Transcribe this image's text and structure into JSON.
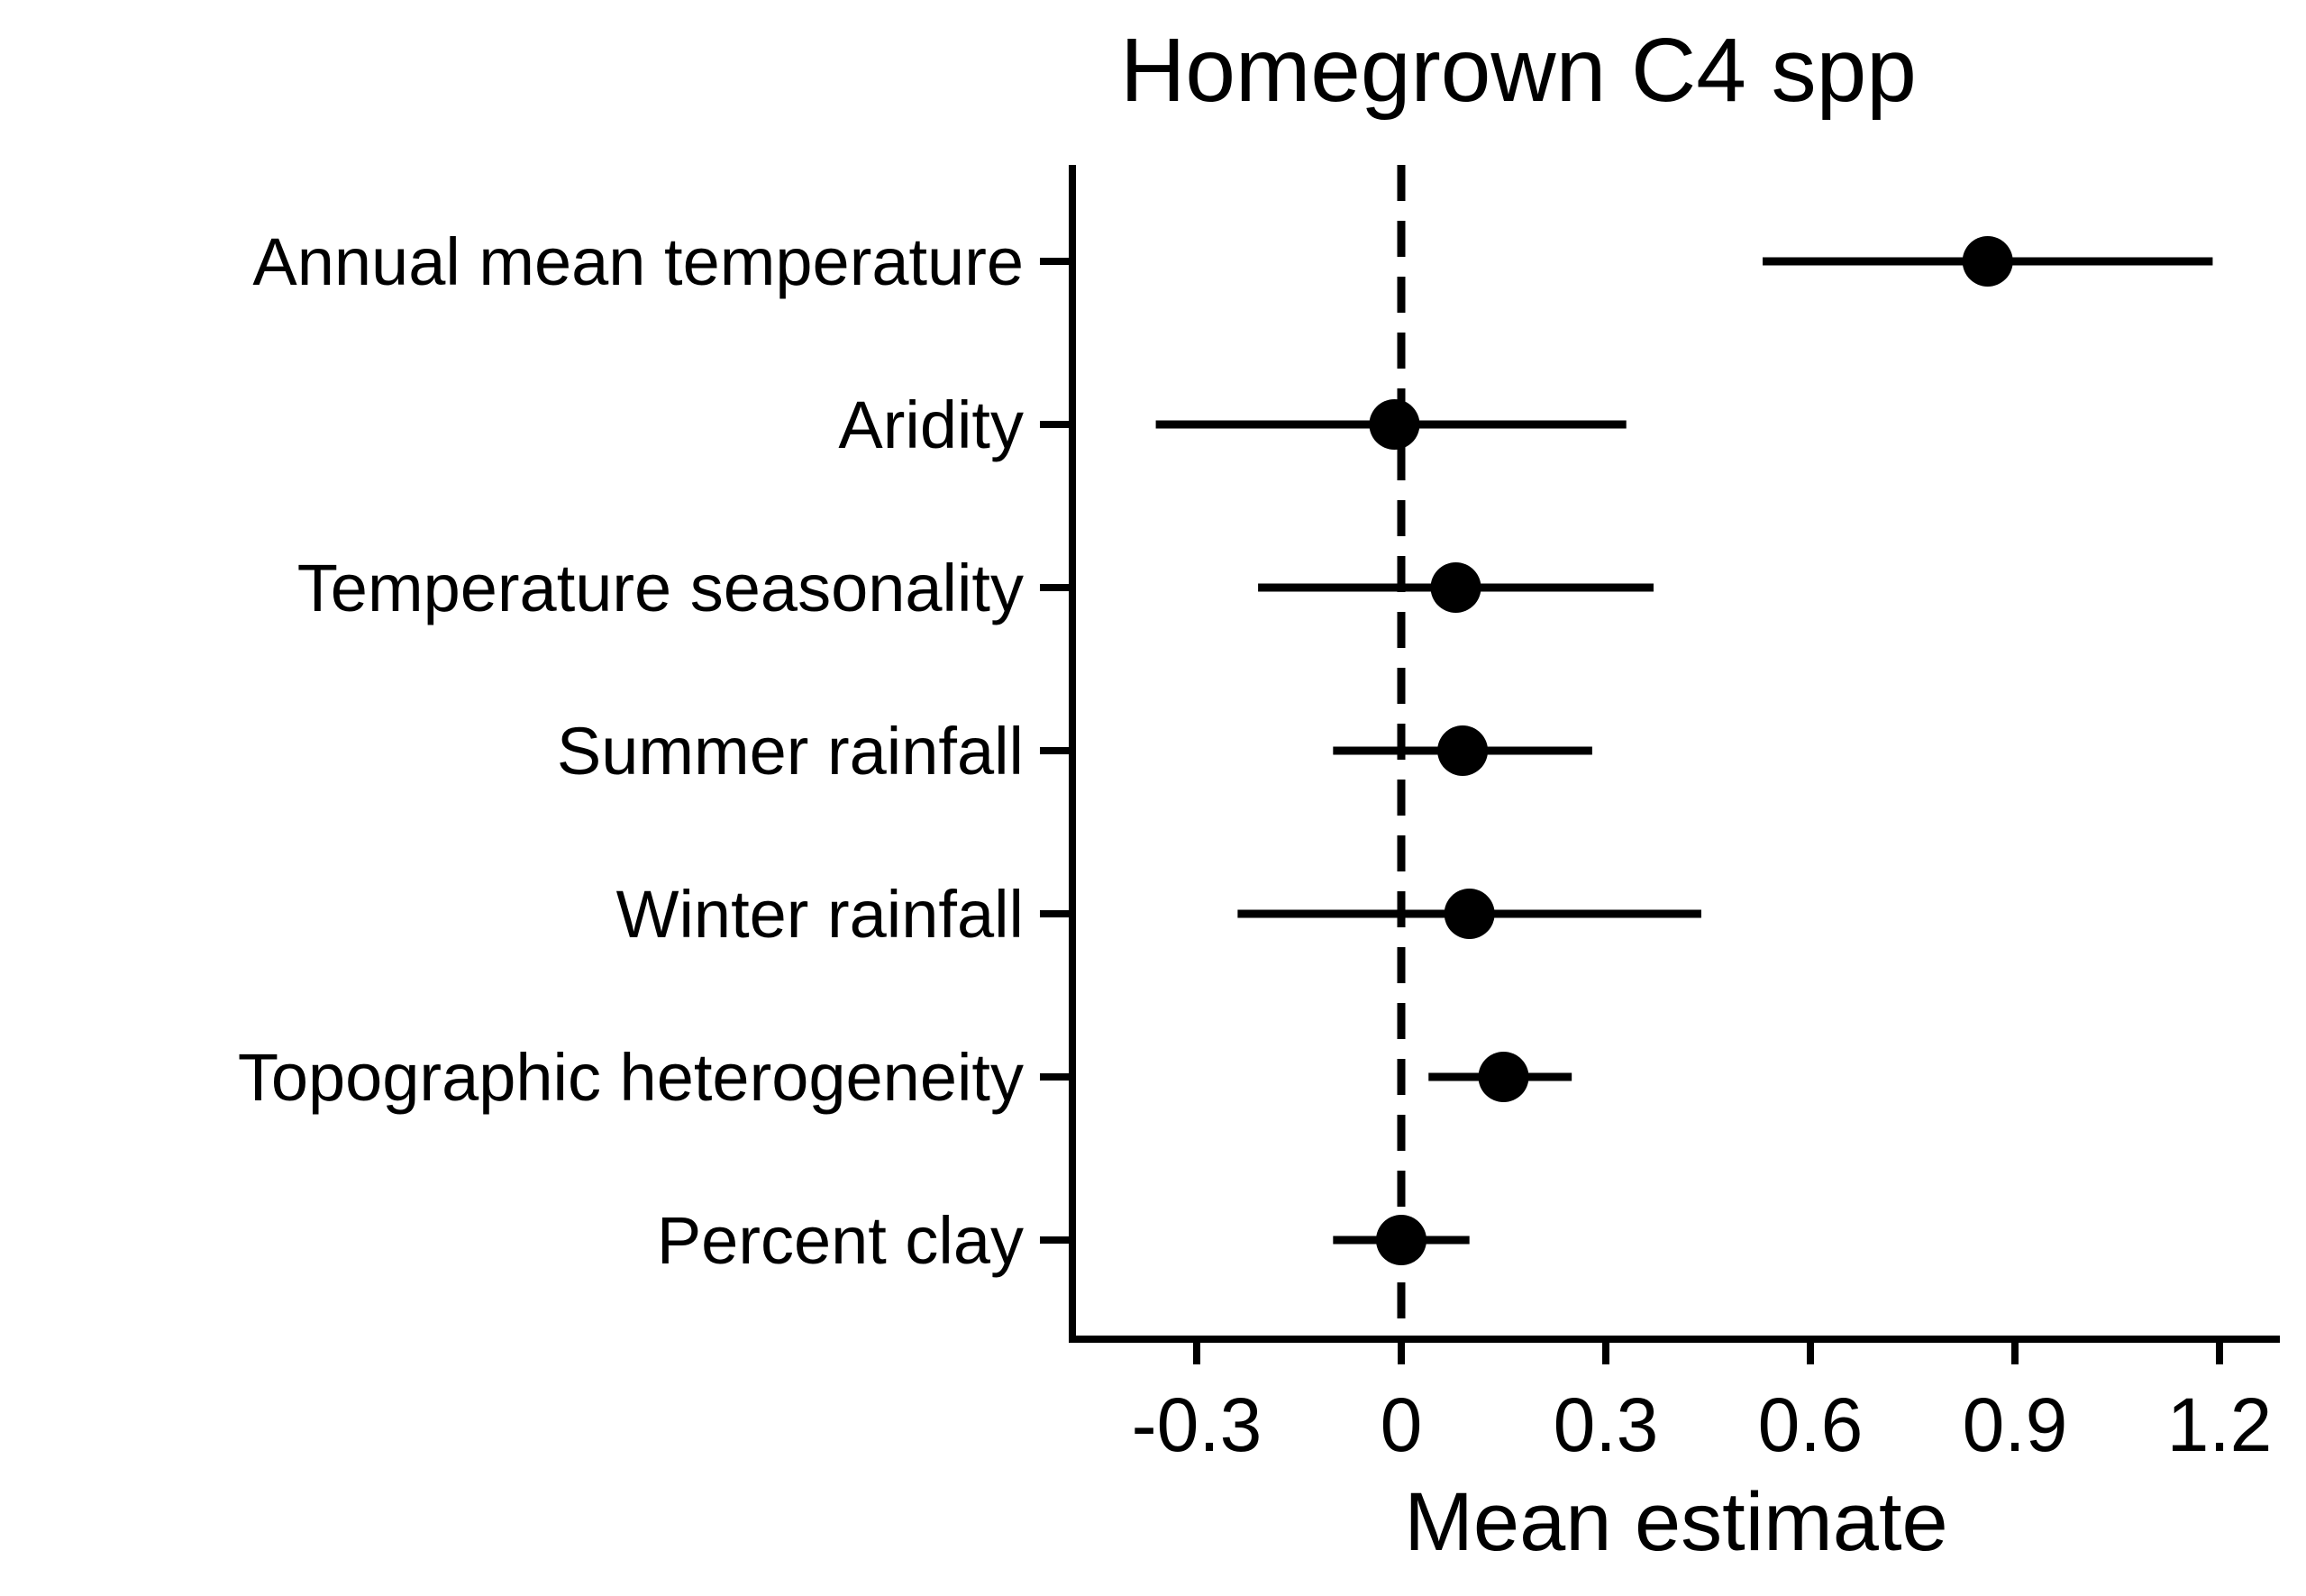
{
  "chart_data": {
    "type": "forest",
    "title": "Homegrown C4 spp",
    "xlabel": "Mean estimate",
    "ylabel": "",
    "xlim": [
      -0.48,
      1.28
    ],
    "xticks": [
      -0.3,
      0,
      0.3,
      0.6,
      0.9,
      1.2
    ],
    "xtick_labels": [
      "-0.3",
      "0",
      "0.3",
      "0.6",
      "0.9",
      "1.2"
    ],
    "reference_line": {
      "x": 0,
      "style": "dashed"
    },
    "grid": false,
    "categories": [
      "Annual mean temperature",
      "Aridity",
      "Temperature seasonality",
      "Summer rainfall",
      "Winter rainfall",
      "Topographic heterogeneity",
      "Percent clay"
    ],
    "estimates": [
      0.86,
      -0.01,
      0.08,
      0.09,
      0.1,
      0.15,
      0.0
    ],
    "lower": [
      0.53,
      -0.36,
      -0.21,
      -0.1,
      -0.24,
      0.04,
      -0.1
    ],
    "upper": [
      1.19,
      0.33,
      0.37,
      0.28,
      0.44,
      0.25,
      0.1
    ],
    "colors": {
      "mark": "#000000",
      "axis": "#000000"
    }
  }
}
